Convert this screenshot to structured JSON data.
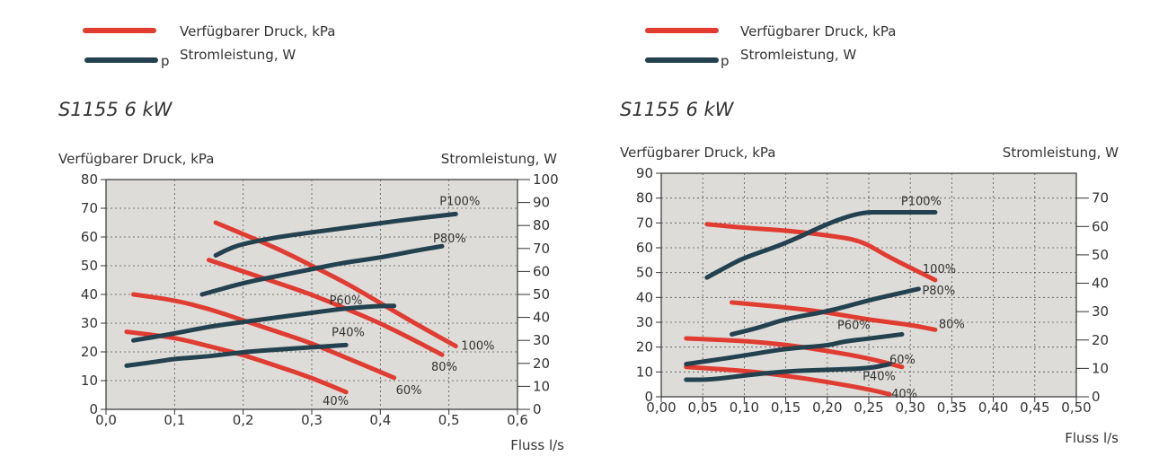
{
  "legend": [
    {
      "label": "Verfügbarer Druck, kPa",
      "color": "#e03c31"
    },
    {
      "label": "Stromleistung, W",
      "color": "#23414f",
      "marker": "p"
    }
  ],
  "chart_data": [
    {
      "type": "line",
      "title": "S1155 6 kW",
      "ylabel": "Verfügbarer Druck, kPa",
      "y2label": "Stromleistung, W",
      "xlabel": "Fluss l/s",
      "xlim": [
        0,
        0.6
      ],
      "ylim": [
        0,
        80
      ],
      "y2lim": [
        0,
        100
      ],
      "xticks": [
        "0,0",
        "0,1",
        "0,2",
        "0,3",
        "0,4",
        "0,5",
        "0,6"
      ],
      "yticks": [
        "0",
        "10",
        "20",
        "30",
        "40",
        "50",
        "60",
        "70",
        "80"
      ],
      "y2ticks": [
        "0",
        "10",
        "20",
        "30",
        "40",
        "50",
        "60",
        "70",
        "80",
        "90",
        "100"
      ],
      "grid": true,
      "series": [
        {
          "name": "100%",
          "axis": "left",
          "color": "#e03c31",
          "x": [
            0.16,
            0.2,
            0.25,
            0.3,
            0.35,
            0.4,
            0.45,
            0.51
          ],
          "y": [
            65,
            61,
            56,
            50,
            44,
            37,
            30,
            22
          ]
        },
        {
          "name": "80%",
          "axis": "left",
          "color": "#e03c31",
          "x": [
            0.15,
            0.2,
            0.25,
            0.3,
            0.35,
            0.4,
            0.45,
            0.49
          ],
          "y": [
            52,
            48,
            44,
            40,
            35,
            30,
            24,
            19
          ]
        },
        {
          "name": "60%",
          "axis": "left",
          "color": "#e03c31",
          "x": [
            0.04,
            0.1,
            0.15,
            0.2,
            0.25,
            0.3,
            0.35,
            0.42
          ],
          "y": [
            40,
            38,
            35,
            31,
            27,
            23,
            18,
            11
          ]
        },
        {
          "name": "40%",
          "axis": "left",
          "color": "#e03c31",
          "x": [
            0.03,
            0.1,
            0.15,
            0.2,
            0.25,
            0.3,
            0.35
          ],
          "y": [
            27,
            25,
            22,
            19,
            15,
            11,
            6
          ]
        },
        {
          "name": "P100%",
          "axis": "right",
          "color": "#23414f",
          "x": [
            0.16,
            0.18,
            0.2,
            0.25,
            0.3,
            0.35,
            0.4,
            0.45,
            0.51
          ],
          "y": [
            67,
            70,
            72,
            75,
            77,
            79,
            81,
            83,
            85
          ]
        },
        {
          "name": "P80%",
          "axis": "right",
          "color": "#23414f",
          "x": [
            0.14,
            0.2,
            0.25,
            0.3,
            0.35,
            0.4,
            0.45,
            0.49
          ],
          "y": [
            50,
            55,
            58,
            61,
            64,
            66,
            69,
            71
          ]
        },
        {
          "name": "P60%",
          "axis": "right",
          "color": "#23414f",
          "x": [
            0.04,
            0.1,
            0.15,
            0.2,
            0.25,
            0.3,
            0.35,
            0.4,
            0.42
          ],
          "y": [
            30,
            33,
            36,
            38,
            40,
            42,
            44,
            45,
            45
          ]
        },
        {
          "name": "P40%",
          "axis": "right",
          "color": "#23414f",
          "x": [
            0.03,
            0.08,
            0.1,
            0.15,
            0.2,
            0.25,
            0.3,
            0.35
          ],
          "y": [
            19,
            21,
            22,
            23,
            25,
            26,
            27,
            28
          ]
        }
      ]
    },
    {
      "type": "line",
      "title": "S1155 6 kW",
      "ylabel": "Verfügbarer Druck, kPa",
      "y2label": "Stromleistung, W",
      "xlabel": "Fluss l/s",
      "xlim": [
        0,
        0.5
      ],
      "ylim": [
        0,
        90
      ],
      "y2lim": [
        0,
        78.75
      ],
      "xticks": [
        "0,00",
        "0,05",
        "0,10",
        "0,15",
        "0,20",
        "0,25",
        "0,30",
        "0,35",
        "0,40",
        "0,45",
        "0,50"
      ],
      "yticks": [
        "0",
        "10",
        "20",
        "30",
        "40",
        "50",
        "60",
        "70",
        "80",
        "90"
      ],
      "y2ticks": [
        "0",
        "10",
        "20",
        "30",
        "40",
        "50",
        "60",
        "70"
      ],
      "grid": true,
      "series": [
        {
          "name": "100%",
          "axis": "left",
          "color": "#e03c31",
          "x": [
            0.055,
            0.1,
            0.15,
            0.2,
            0.24,
            0.27,
            0.3,
            0.33
          ],
          "y": [
            69.5,
            68,
            67,
            65,
            63,
            57,
            52,
            47
          ]
        },
        {
          "name": "80%",
          "axis": "left",
          "color": "#e03c31",
          "x": [
            0.085,
            0.15,
            0.2,
            0.25,
            0.3,
            0.33
          ],
          "y": [
            38,
            36,
            34,
            31,
            29,
            27
          ]
        },
        {
          "name": "60%",
          "axis": "left",
          "color": "#e03c31",
          "x": [
            0.03,
            0.1,
            0.15,
            0.2,
            0.25,
            0.29
          ],
          "y": [
            23.5,
            22.5,
            21,
            18.5,
            15.5,
            12
          ]
        },
        {
          "name": "40%",
          "axis": "left",
          "color": "#e03c31",
          "x": [
            0.03,
            0.1,
            0.15,
            0.2,
            0.25,
            0.275
          ],
          "y": [
            12,
            10.5,
            8.5,
            6,
            3,
            1
          ]
        },
        {
          "name": "P100%",
          "axis": "right",
          "color": "#23414f",
          "x": [
            0.055,
            0.08,
            0.1,
            0.15,
            0.2,
            0.24,
            0.27,
            0.33
          ],
          "y": [
            42,
            46,
            49,
            54,
            61,
            65,
            65,
            65
          ]
        },
        {
          "name": "P80%",
          "axis": "right",
          "color": "#23414f",
          "x": [
            0.085,
            0.12,
            0.15,
            0.2,
            0.25,
            0.28,
            0.31
          ],
          "y": [
            22,
            24.5,
            27.5,
            30,
            34,
            36,
            38
          ]
        },
        {
          "name": "P60%",
          "axis": "right",
          "color": "#23414f",
          "x": [
            0.03,
            0.1,
            0.15,
            0.2,
            0.22,
            0.25,
            0.29
          ],
          "y": [
            11.5,
            14.5,
            17,
            18,
            19.5,
            20.5,
            22
          ]
        },
        {
          "name": "P40%",
          "axis": "right",
          "color": "#23414f",
          "x": [
            0.03,
            0.06,
            0.1,
            0.15,
            0.2,
            0.25,
            0.275
          ],
          "y": [
            6,
            6,
            7.5,
            9,
            9.5,
            10,
            11.5
          ]
        }
      ]
    }
  ]
}
